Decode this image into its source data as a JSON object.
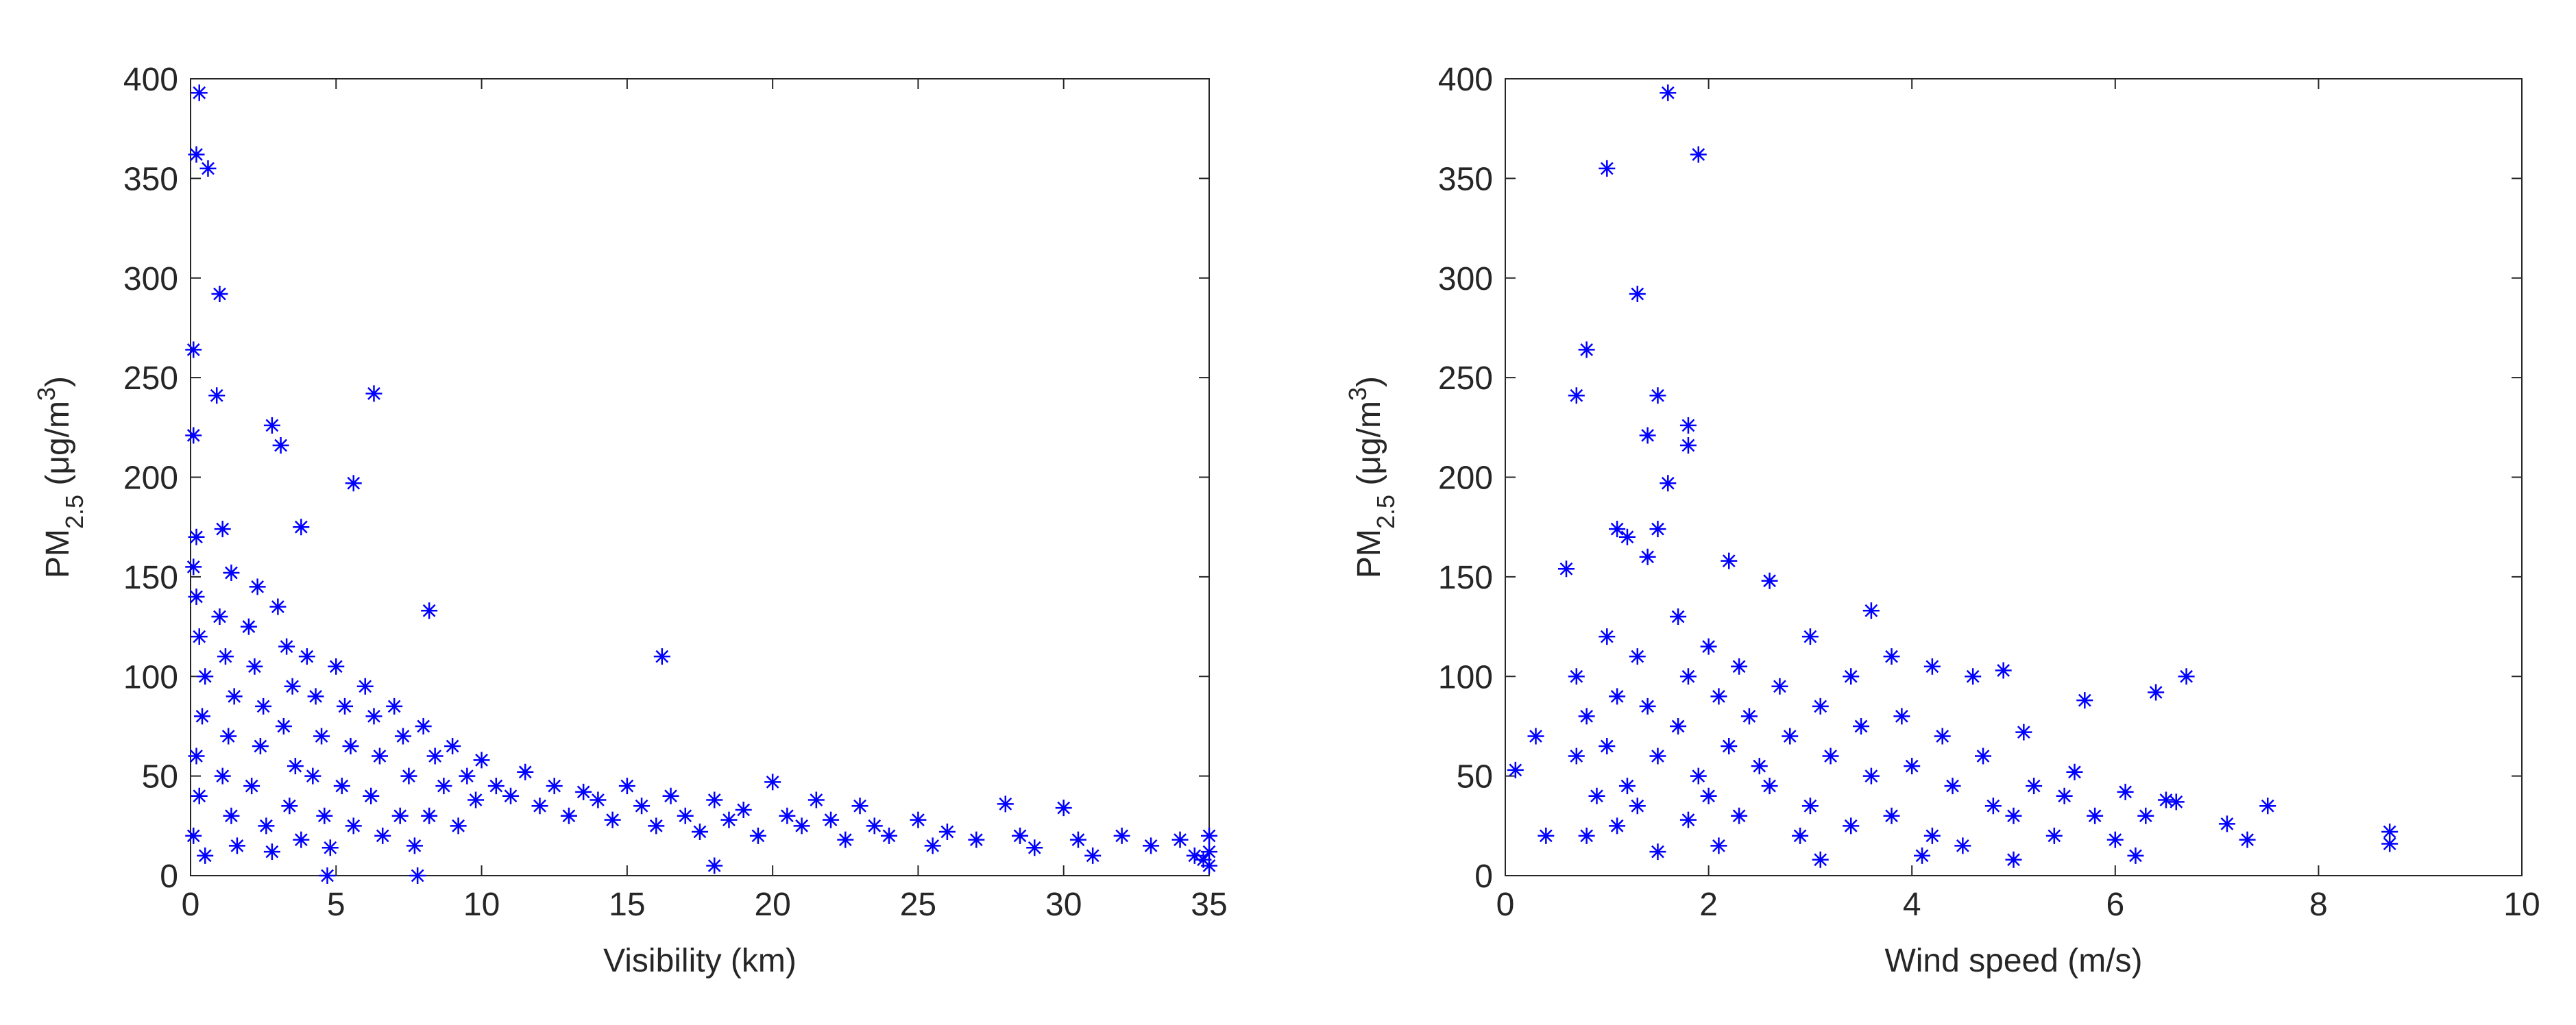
{
  "chart_data": [
    {
      "type": "scatter",
      "xlabel": "Visibility (km)",
      "ylabel": [
        "PM",
        "2.5",
        " (μg/m",
        "3",
        ")"
      ],
      "color": "#0000ff",
      "xlim": [
        0,
        35
      ],
      "xticks": [
        0,
        5,
        10,
        15,
        20,
        25,
        30,
        35
      ],
      "ylim": [
        0,
        400
      ],
      "yticks": [
        0,
        50,
        100,
        150,
        200,
        250,
        300,
        350,
        400
      ],
      "x": [
        0.3,
        0.2,
        0.6,
        1,
        0.1,
        0.9,
        0.1,
        2.8,
        3.1,
        6.3,
        5.6,
        3.8,
        1.1,
        0.2,
        8.2,
        16.2,
        0.1,
        1.4,
        2.3,
        4.7,
        7.8,
        18,
        0.2,
        0.3,
        0.5,
        0.4,
        0.2,
        0.3,
        0.1,
        0.5,
        1,
        1.2,
        1.5,
        1.3,
        1.1,
        1.4,
        1.6,
        2,
        2.2,
        2.5,
        2.4,
        2.1,
        2.6,
        2.8,
        3,
        3.3,
        3.5,
        3.2,
        3.6,
        3.4,
        3.8,
        4,
        4.3,
        4.5,
        4.2,
        4.6,
        4.8,
        5,
        5.3,
        5.5,
        5.2,
        5.6,
        6,
        6.3,
        6.5,
        6.2,
        6.6,
        7,
        7.3,
        7.5,
        7.2,
        7.7,
        8,
        8.4,
        8.7,
        8.2,
        9,
        9.5,
        9.8,
        9.2,
        10,
        10.5,
        11,
        11.5,
        12,
        12.5,
        13,
        13.5,
        14,
        14.5,
        15,
        15.5,
        16,
        16.5,
        17,
        17.5,
        18,
        18.5,
        19,
        19.5,
        20,
        20.5,
        21,
        21.5,
        22,
        22.5,
        23,
        23.5,
        24,
        25,
        25.5,
        26,
        27,
        28,
        28.5,
        29,
        30,
        30.5,
        31,
        32,
        33,
        34,
        34.5,
        35,
        35,
        35,
        34.8
      ],
      "y": [
        393,
        362,
        355,
        292,
        264,
        241,
        221,
        226,
        216,
        242,
        197,
        175,
        174,
        170,
        133,
        110,
        155,
        152,
        145,
        0,
        0,
        5,
        140,
        120,
        100,
        80,
        60,
        40,
        20,
        10,
        130,
        110,
        90,
        70,
        50,
        30,
        15,
        125,
        105,
        85,
        65,
        45,
        25,
        12,
        135,
        115,
        95,
        75,
        55,
        35,
        18,
        110,
        90,
        70,
        50,
        30,
        14,
        105,
        85,
        65,
        45,
        25,
        95,
        80,
        60,
        40,
        20,
        85,
        70,
        50,
        30,
        15,
        75,
        60,
        45,
        30,
        65,
        50,
        38,
        25,
        58,
        45,
        40,
        52,
        35,
        45,
        30,
        42,
        38,
        28,
        45,
        35,
        25,
        40,
        30,
        22,
        38,
        28,
        33,
        20,
        47,
        30,
        25,
        38,
        28,
        18,
        35,
        25,
        20,
        28,
        15,
        22,
        18,
        36,
        20,
        14,
        34,
        18,
        10,
        20,
        15,
        18,
        10,
        5,
        12,
        20,
        8
      ]
    },
    {
      "type": "scatter",
      "xlabel": "Wind speed (m/s)",
      "ylabel": [
        "PM",
        "2.5",
        " (μg/m",
        "3",
        ")"
      ],
      "color": "#0000ff",
      "xlim": [
        0,
        10
      ],
      "xticks": [
        0,
        2,
        4,
        6,
        8,
        10
      ],
      "ylim": [
        0,
        400
      ],
      "yticks": [
        0,
        50,
        100,
        150,
        200,
        250,
        300,
        350,
        400
      ],
      "x": [
        1.6,
        1.9,
        1,
        1.3,
        0.8,
        0.7,
        1.5,
        1.4,
        1.8,
        1.8,
        1.6,
        1.1,
        1.5,
        1.2,
        0.6,
        1.4,
        2.2,
        3.6,
        6.7,
        6.4,
        5.7,
        7.1,
        7.3,
        7.5,
        8.7,
        8.7,
        0.1,
        0.3,
        0.4,
        0.7,
        0.8,
        0.7,
        0.9,
        0.8,
        1,
        1.1,
        1,
        1.2,
        1.1,
        1.3,
        1.4,
        1.5,
        1.3,
        1.5,
        1.7,
        1.8,
        1.7,
        1.9,
        1.8,
        2,
        2.1,
        2.2,
        2,
        2.1,
        2.3,
        2.4,
        2.5,
        2.3,
        2.6,
        2.7,
        2.8,
        2.6,
        2.9,
        3,
        3.1,
        3.2,
        3,
        3.1,
        3.4,
        3.5,
        3.6,
        3.4,
        3.8,
        3.9,
        4,
        3.8,
        4.1,
        4.2,
        4.3,
        4.4,
        4.2,
        4.6,
        4.7,
        4.8,
        4.5,
        4.9,
        5,
        5.1,
        5,
        5.2,
        5.4,
        5.5,
        5.6,
        5.8,
        6,
        6.1,
        6.2,
        6.3,
        6.5,
        6.6
      ],
      "y": [
        393,
        362,
        355,
        292,
        264,
        241,
        241,
        221,
        226,
        216,
        197,
        174,
        174,
        170,
        154,
        160,
        158,
        133,
        100,
        92,
        88,
        26,
        18,
        35,
        22,
        16,
        53,
        70,
        20,
        100,
        80,
        60,
        40,
        20,
        120,
        90,
        65,
        45,
        25,
        110,
        85,
        60,
        35,
        12,
        130,
        100,
        75,
        50,
        28,
        115,
        90,
        65,
        40,
        15,
        105,
        80,
        55,
        30,
        148,
        95,
        70,
        45,
        20,
        120,
        85,
        60,
        35,
        8,
        100,
        75,
        50,
        25,
        110,
        80,
        55,
        30,
        10,
        105,
        70,
        45,
        20,
        100,
        60,
        35,
        15,
        103,
        30,
        72,
        8,
        45,
        20,
        40,
        52,
        30,
        18,
        42,
        10,
        30,
        38,
        37
      ]
    }
  ]
}
